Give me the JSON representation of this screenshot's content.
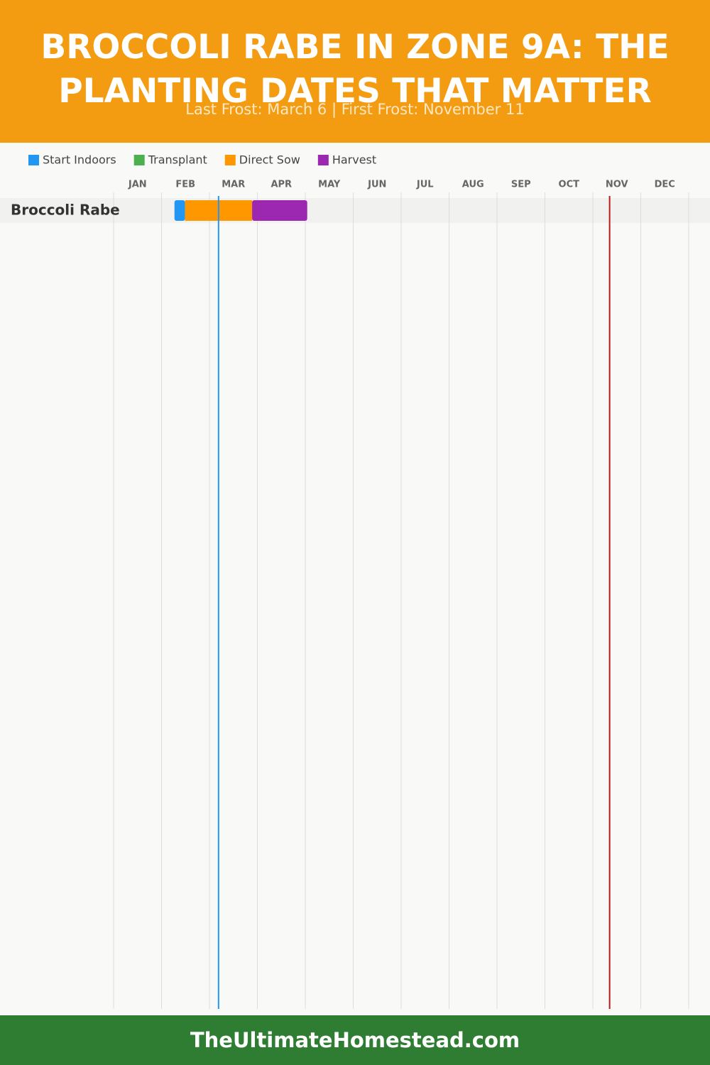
{
  "chart_data": {
    "type": "gantt",
    "title": "BROCCOLI RABE IN ZONE 9A: THE PLANTING DATES THAT MATTER",
    "subtitle": "Last Frost: March 6 | First Frost: November 11",
    "series": [
      {
        "name": "Start Indoors",
        "color": "#2196f3"
      },
      {
        "name": "Transplant",
        "color": "#4caf50"
      },
      {
        "name": "Direct Sow",
        "color": "#ff9800"
      },
      {
        "name": "Harvest",
        "color": "#9c27b0"
      }
    ],
    "xlim": [
      0,
      12
    ],
    "xticks": [
      {
        "value": 0,
        "label": "JAN"
      },
      {
        "value": 1,
        "label": "FEB"
      },
      {
        "value": 2,
        "label": "MAR"
      },
      {
        "value": 3,
        "label": "APR"
      },
      {
        "value": 4,
        "label": "MAY"
      },
      {
        "value": 5,
        "label": "JUN"
      },
      {
        "value": 6,
        "label": "JUL"
      },
      {
        "value": 7,
        "label": "AUG"
      },
      {
        "value": 8,
        "label": "SEP"
      },
      {
        "value": 9,
        "label": "OCT"
      },
      {
        "value": 10,
        "label": "NOV"
      },
      {
        "value": 11,
        "label": "DEC"
      }
    ],
    "grid": true,
    "last_frost": 2.19,
    "last_frost_color": "#2196f3",
    "first_frost": 10.35,
    "first_frost_color": "#b71c1c",
    "rows": [
      {
        "name": "Broccoli Rabe",
        "segments": [
          {
            "series": 0,
            "start": 1.27,
            "end": 1.49
          },
          {
            "series": 2,
            "start": 1.49,
            "end": 2.89
          },
          {
            "series": 3,
            "start": 2.89,
            "end": 4.04
          }
        ]
      }
    ]
  },
  "footer": "TheUltimateHomestead.com"
}
